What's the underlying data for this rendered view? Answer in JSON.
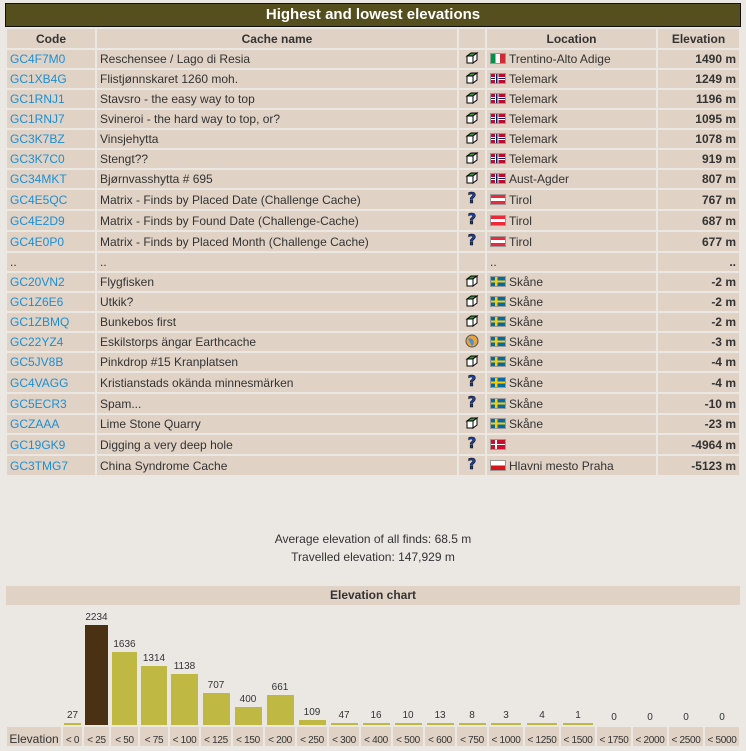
{
  "title": "Highest and lowest elevations",
  "headers": {
    "code": "Code",
    "name": "Cache name",
    "location": "Location",
    "elevation": "Elevation"
  },
  "rows": [
    {
      "code": "GC4F7M0",
      "name": "Reschensee / Lago di Resia",
      "type": "traditional",
      "flag": "it",
      "location": "Trentino-Alto Adige",
      "elevation": "1490 m"
    },
    {
      "code": "GC1XB4G",
      "name": "Flistjønnskaret 1260 moh.",
      "type": "traditional",
      "flag": "no",
      "location": "Telemark",
      "elevation": "1249 m"
    },
    {
      "code": "GC1RNJ1",
      "name": "Stavsro - the easy way to top",
      "type": "traditional",
      "flag": "no",
      "location": "Telemark",
      "elevation": "1196 m"
    },
    {
      "code": "GC1RNJ7",
      "name": "Svineroi - the hard way to top, or?",
      "type": "traditional",
      "flag": "no",
      "location": "Telemark",
      "elevation": "1095 m"
    },
    {
      "code": "GC3K7BZ",
      "name": "Vinsjehytta",
      "type": "traditional",
      "flag": "no",
      "location": "Telemark",
      "elevation": "1078 m"
    },
    {
      "code": "GC3K7C0",
      "name": "Stengt??",
      "type": "traditional",
      "flag": "no",
      "location": "Telemark",
      "elevation": "919 m"
    },
    {
      "code": "GC34MKT",
      "name": "Bjørnvasshytta # 695",
      "type": "traditional",
      "flag": "no",
      "location": "Aust-Agder",
      "elevation": "807 m"
    },
    {
      "code": "GC4E5QC",
      "name": "Matrix - Finds by Placed Date (Challenge Cache)",
      "type": "mystery",
      "flag": "at",
      "location": "Tirol",
      "elevation": "767 m"
    },
    {
      "code": "GC4E2D9",
      "name": "Matrix - Finds by Found Date (Challenge-Cache)",
      "type": "mystery",
      "flag": "at",
      "location": "Tirol",
      "elevation": "687 m"
    },
    {
      "code": "GC4E0P0",
      "name": "Matrix - Finds by Placed Month (Challenge Cache)",
      "type": "mystery",
      "flag": "at",
      "location": "Tirol",
      "elevation": "677 m"
    },
    {
      "code": "..",
      "name": "..",
      "type": "",
      "flag": "",
      "location": "..",
      "elevation": ".."
    },
    {
      "code": "GC20VN2",
      "name": "Flygfisken",
      "type": "traditional",
      "flag": "se",
      "location": "Skåne",
      "elevation": "-2 m"
    },
    {
      "code": "GC1Z6E6",
      "name": "Utkik?",
      "type": "traditional",
      "flag": "se",
      "location": "Skåne",
      "elevation": "-2 m"
    },
    {
      "code": "GC1ZBMQ",
      "name": "Bunkebos first",
      "type": "traditional",
      "flag": "se",
      "location": "Skåne",
      "elevation": "-2 m"
    },
    {
      "code": "GC22YZ4",
      "name": "Eskilstorps ängar Earthcache",
      "type": "earthcache",
      "flag": "se",
      "location": "Skåne",
      "elevation": "-3 m"
    },
    {
      "code": "GC5JV8B",
      "name": "Pinkdrop #15 Kranplatsen",
      "type": "traditional",
      "flag": "se",
      "location": "Skåne",
      "elevation": "-4 m"
    },
    {
      "code": "GC4VAGG",
      "name": "Kristianstads okända minnesmärken",
      "type": "mystery",
      "flag": "se",
      "location": "Skåne",
      "elevation": "-4 m"
    },
    {
      "code": "GC5ECR3",
      "name": "Spam...",
      "type": "mystery",
      "flag": "se",
      "location": "Skåne",
      "elevation": "-10 m"
    },
    {
      "code": "GCZAAA",
      "name": "Lime Stone Quarry",
      "type": "traditional",
      "flag": "se",
      "location": "Skåne",
      "elevation": "-23 m"
    },
    {
      "code": "GC19GK9",
      "name": "Digging a very deep hole",
      "type": "mystery",
      "flag": "dk",
      "location": "",
      "elevation": "-4964 m"
    },
    {
      "code": "GC3TMG7",
      "name": "China Syndrome Cache",
      "type": "mystery",
      "flag": "cz",
      "location": "Hlavni mesto Praha",
      "elevation": "-5123 m"
    }
  ],
  "stats": {
    "average": "Average elevation of all finds: 68.5 m",
    "travelled": "Travelled elevation: 147,929 m"
  },
  "chart_data": {
    "type": "bar",
    "title": "Elevation chart",
    "xlabel": "Elevation",
    "categories": [
      "< 0",
      "< 25",
      "< 50",
      "< 75",
      "< 100",
      "< 125",
      "< 150",
      "< 200",
      "< 250",
      "< 300",
      "< 400",
      "< 500",
      "< 600",
      "< 750",
      "< 1000",
      "< 1250",
      "< 1500",
      "< 1750",
      "< 2000",
      "< 2500",
      "< 5000"
    ],
    "values": [
      27,
      2234,
      1636,
      1314,
      1138,
      707,
      400,
      661,
      109,
      47,
      16,
      10,
      13,
      8,
      3,
      4,
      1,
      0,
      0,
      0,
      0
    ],
    "colors": {
      "bar": "#bfb843",
      "max": "#4b3113"
    }
  }
}
